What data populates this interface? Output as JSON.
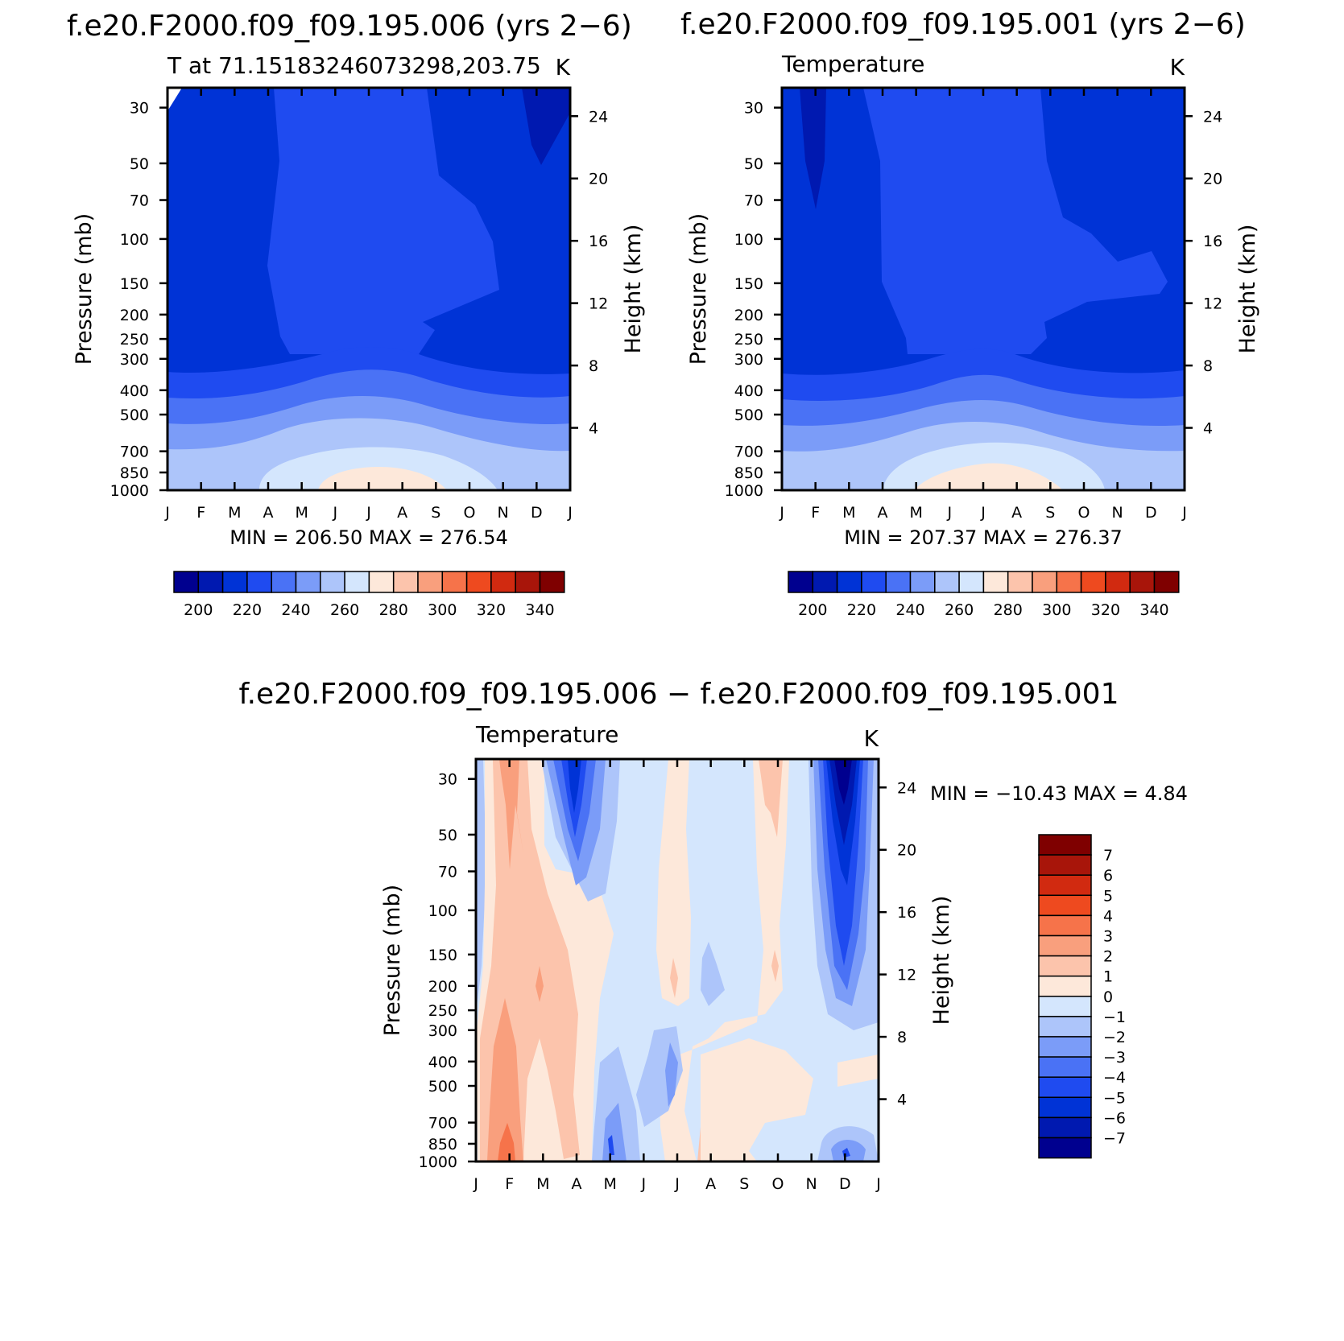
{
  "palette": {
    "abs": [
      "#00008f",
      "#0019b0",
      "#0033d6",
      "#1f4bf0",
      "#4a72f5",
      "#7b9cf8",
      "#adc5fa",
      "#d4e6fd",
      "#fde8da",
      "#fcc4ac",
      "#f99f7d",
      "#f6734a",
      "#ee4a1f",
      "#d12a10",
      "#a8150a",
      "#7f0000"
    ],
    "diff": [
      "#00008f",
      "#0019b0",
      "#0033d6",
      "#1f4bf0",
      "#4a72f5",
      "#7b9cf8",
      "#adc5fa",
      "#d4e6fd",
      "#fde8da",
      "#fcc4ac",
      "#f99f7d",
      "#f6734a",
      "#ee4a1f",
      "#d12a10",
      "#a8150a",
      "#7f0000"
    ]
  },
  "chart_data": [
    {
      "type": "contour",
      "run_title": "f.e20.F2000.f09_f09.195.006 (yrs 2−6)",
      "subtitle_left": "T at 71.15183246073298,203.75",
      "subtitle_right": "K",
      "xlabel": "",
      "ylabel": "Pressure (mb)",
      "ylabel_right": "Height (km)",
      "x_tick_labels": [
        "J",
        "F",
        "M",
        "A",
        "M",
        "J",
        "J",
        "A",
        "S",
        "O",
        "N",
        "D",
        "J"
      ],
      "pressure_ticks": [
        "30",
        "50",
        "70",
        "100",
        "150",
        "200",
        "250",
        "300",
        "400",
        "500",
        "700",
        "850",
        "1000"
      ],
      "pressure_values": [
        30,
        50,
        70,
        100,
        150,
        200,
        250,
        300,
        400,
        500,
        700,
        850,
        1000
      ],
      "height_ticks": [
        "24",
        "20",
        "16",
        "12",
        "8",
        "4"
      ],
      "height_values": [
        24,
        20,
        16,
        12,
        8,
        4
      ],
      "ylim": [
        25,
        1000
      ],
      "min_max_text": "MIN = 206.50 MAX = 276.54",
      "min": 206.5,
      "max": 276.54,
      "colorbar_labels": [
        "200",
        "220",
        "240",
        "260",
        "280",
        "300",
        "320",
        "340"
      ],
      "levels": [
        195,
        200,
        205,
        210,
        215,
        220,
        225,
        230,
        235,
        240,
        245,
        250,
        255,
        260,
        265,
        270,
        275,
        280,
        285,
        290,
        295,
        300,
        305,
        310,
        315,
        320,
        325,
        330,
        335,
        340,
        345
      ],
      "units": "K"
    },
    {
      "type": "contour",
      "run_title": "f.e20.F2000.f09_f09.195.001 (yrs 2−6)",
      "subtitle_left": "Temperature",
      "subtitle_right": "K",
      "xlabel": "",
      "ylabel": "Pressure (mb)",
      "ylabel_right": "Height (km)",
      "x_tick_labels": [
        "J",
        "F",
        "M",
        "A",
        "M",
        "J",
        "J",
        "A",
        "S",
        "O",
        "N",
        "D",
        "J"
      ],
      "pressure_ticks": [
        "30",
        "50",
        "70",
        "100",
        "150",
        "200",
        "250",
        "300",
        "400",
        "500",
        "700",
        "850",
        "1000"
      ],
      "pressure_values": [
        30,
        50,
        70,
        100,
        150,
        200,
        250,
        300,
        400,
        500,
        700,
        850,
        1000
      ],
      "height_ticks": [
        "24",
        "20",
        "16",
        "12",
        "8",
        "4"
      ],
      "height_values": [
        24,
        20,
        16,
        12,
        8,
        4
      ],
      "ylim": [
        25,
        1000
      ],
      "min_max_text": "MIN = 207.37 MAX = 276.37",
      "min": 207.37,
      "max": 276.37,
      "colorbar_labels": [
        "200",
        "220",
        "240",
        "260",
        "280",
        "300",
        "320",
        "340"
      ],
      "units": "K"
    },
    {
      "type": "contour",
      "run_title": "f.e20.F2000.f09_f09.195.006 − f.e20.F2000.f09_f09.195.001",
      "subtitle_left": "Temperature",
      "subtitle_right": "K",
      "xlabel": "",
      "ylabel": "Pressure (mb)",
      "ylabel_right": "Height (km)",
      "x_tick_labels": [
        "J",
        "F",
        "M",
        "A",
        "M",
        "J",
        "J",
        "A",
        "S",
        "O",
        "N",
        "D",
        "J"
      ],
      "pressure_ticks": [
        "30",
        "50",
        "70",
        "100",
        "150",
        "200",
        "250",
        "300",
        "400",
        "500",
        "700",
        "850",
        "1000"
      ],
      "pressure_values": [
        30,
        50,
        70,
        100,
        150,
        200,
        250,
        300,
        400,
        500,
        700,
        850,
        1000
      ],
      "height_ticks": [
        "24",
        "20",
        "16",
        "12",
        "8",
        "4"
      ],
      "height_values": [
        24,
        20,
        16,
        12,
        8,
        4
      ],
      "ylim": [
        25,
        1000
      ],
      "min_max_text": "MIN = −10.43 MAX =    4.84",
      "min": -10.43,
      "max": 4.84,
      "colorbar_labels": [
        "7",
        "6",
        "5",
        "4",
        "3",
        "2",
        "1",
        "0",
        "−1",
        "−2",
        "−3",
        "−4",
        "−5",
        "−6",
        "−7"
      ],
      "levels": [
        -7,
        -6,
        -5,
        -4,
        -3,
        -2,
        -1,
        0,
        1,
        2,
        3,
        4,
        5,
        6,
        7
      ],
      "units": "K"
    }
  ]
}
